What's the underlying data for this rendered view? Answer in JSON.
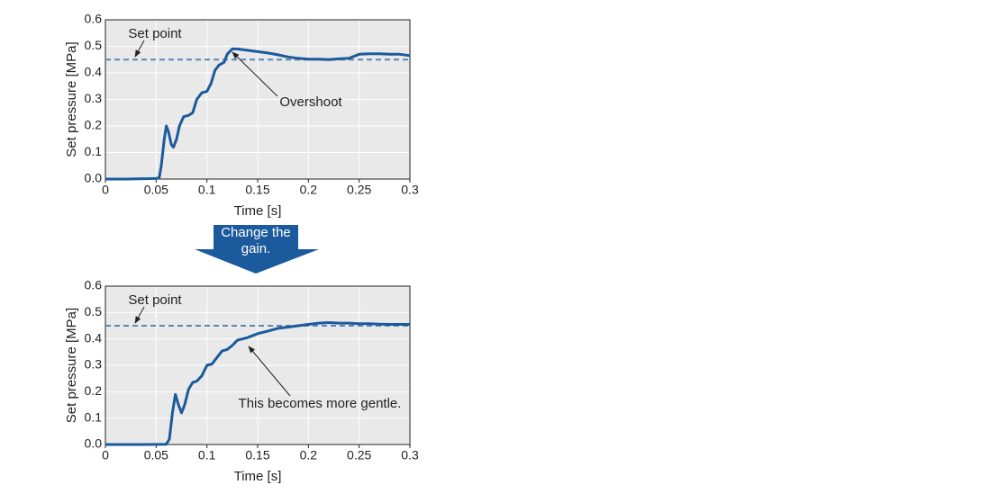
{
  "transition": "Change the gain.",
  "chart_data": [
    {
      "type": "line",
      "xlabel": "Time [s]",
      "ylabel": "Set pressure [MPa]",
      "setpoint": 0.45,
      "setpoint_label": "Set point",
      "annotation": "Overshoot",
      "xlim": [
        0,
        0.3
      ],
      "ylim": [
        0,
        0.6
      ],
      "xticks": [
        0,
        0.05,
        0.1,
        0.15,
        0.2,
        0.25,
        0.3
      ],
      "yticks": [
        {
          "value": 0,
          "label": "0.0"
        },
        0.1,
        0.2,
        0.3,
        0.4,
        0.5,
        0.6
      ],
      "grid": true,
      "color": "#1b5a9c",
      "x": [
        0,
        0.02,
        0.05,
        0.053,
        0.055,
        0.058,
        0.06,
        0.062,
        0.065,
        0.067,
        0.07,
        0.073,
        0.077,
        0.082,
        0.086,
        0.09,
        0.095,
        0.1,
        0.104,
        0.108,
        0.112,
        0.117,
        0.12,
        0.125,
        0.13,
        0.14,
        0.15,
        0.16,
        0.17,
        0.18,
        0.19,
        0.2,
        0.21,
        0.22,
        0.23,
        0.24,
        0.25,
        0.26,
        0.27,
        0.28,
        0.29,
        0.3
      ],
      "values": [
        0,
        0,
        0.002,
        0.005,
        0.05,
        0.15,
        0.2,
        0.18,
        0.13,
        0.12,
        0.15,
        0.2,
        0.235,
        0.24,
        0.25,
        0.3,
        0.325,
        0.33,
        0.36,
        0.41,
        0.43,
        0.44,
        0.47,
        0.49,
        0.49,
        0.485,
        0.48,
        0.475,
        0.468,
        0.46,
        0.455,
        0.452,
        0.452,
        0.45,
        0.453,
        0.455,
        0.47,
        0.472,
        0.472,
        0.47,
        0.47,
        0.465
      ]
    },
    {
      "type": "line",
      "xlabel": "Time [s]",
      "ylabel": "Set pressure [MPa]",
      "setpoint": 0.45,
      "setpoint_label": "Set point",
      "annotation": "This becomes more gentle.",
      "xlim": [
        0,
        0.3
      ],
      "ylim": [
        0,
        0.6
      ],
      "xticks": [
        0,
        0.05,
        0.1,
        0.15,
        0.2,
        0.25,
        0.3
      ],
      "yticks": [
        {
          "value": 0,
          "label": "0.0"
        },
        0.1,
        0.2,
        0.3,
        0.4,
        0.5,
        0.6
      ],
      "grid": true,
      "color": "#1b5a9c",
      "x": [
        0,
        0.04,
        0.06,
        0.063,
        0.066,
        0.069,
        0.072,
        0.075,
        0.078,
        0.082,
        0.086,
        0.09,
        0.095,
        0.1,
        0.105,
        0.11,
        0.115,
        0.12,
        0.125,
        0.13,
        0.135,
        0.14,
        0.15,
        0.16,
        0.17,
        0.18,
        0.19,
        0.2,
        0.21,
        0.22,
        0.23,
        0.24,
        0.25,
        0.26,
        0.27,
        0.28,
        0.29,
        0.3
      ],
      "values": [
        0,
        0,
        0.001,
        0.02,
        0.12,
        0.19,
        0.15,
        0.12,
        0.15,
        0.21,
        0.235,
        0.24,
        0.26,
        0.3,
        0.305,
        0.33,
        0.355,
        0.36,
        0.375,
        0.395,
        0.4,
        0.405,
        0.42,
        0.43,
        0.44,
        0.445,
        0.45,
        0.455,
        0.46,
        0.462,
        0.46,
        0.46,
        0.458,
        0.458,
        0.456,
        0.455,
        0.455,
        0.455
      ]
    }
  ]
}
